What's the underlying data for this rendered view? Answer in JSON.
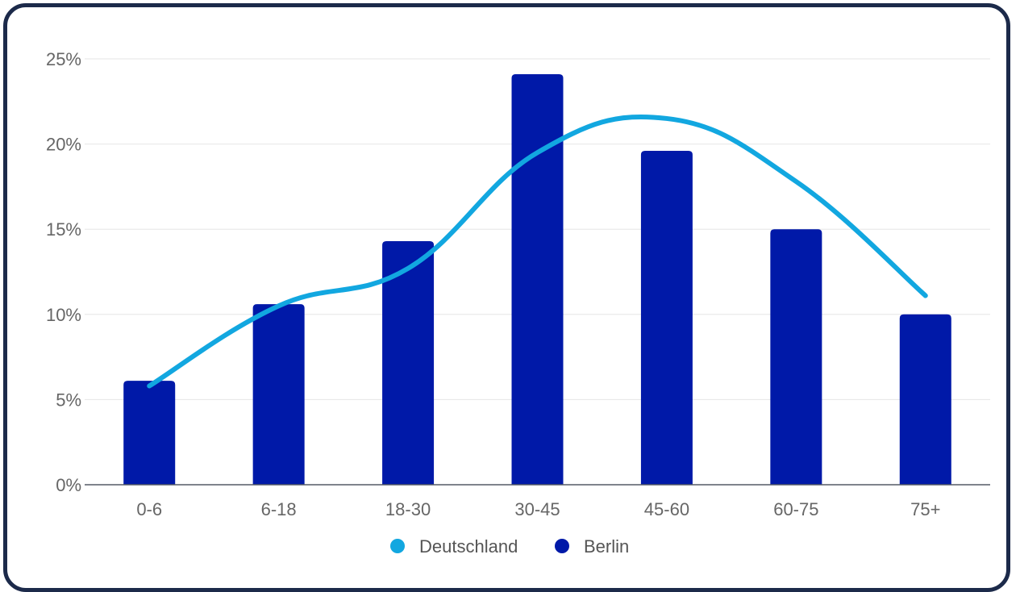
{
  "chart_data": {
    "type": "bar",
    "categories": [
      "0-6",
      "6-18",
      "18-30",
      "30-45",
      "45-60",
      "60-75",
      "75+"
    ],
    "series": [
      {
        "name": "Berlin",
        "type": "bar",
        "color": "#0019a8",
        "values": [
          6.1,
          10.6,
          14.3,
          24.1,
          19.6,
          15.0,
          10.0
        ]
      },
      {
        "name": "Deutschland",
        "type": "line",
        "color": "#12a7e0",
        "values": [
          5.8,
          10.5,
          12.7,
          19.5,
          21.5,
          17.8,
          11.1
        ]
      }
    ],
    "y_ticks": [
      "0%",
      "5%",
      "10%",
      "15%",
      "20%",
      "25%"
    ],
    "ylim": [
      0,
      25
    ],
    "y_unit": "%",
    "grid": true,
    "legend": {
      "position": "bottom",
      "items": [
        "Deutschland",
        "Berlin"
      ]
    },
    "title": "",
    "xlabel": "",
    "ylabel": ""
  },
  "colors": {
    "frame_border": "#1c2a4a",
    "gridline": "#e6e6e6",
    "axis": "#555b66",
    "label_text": "#666666"
  }
}
